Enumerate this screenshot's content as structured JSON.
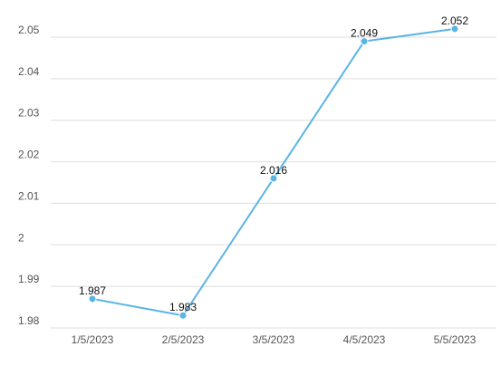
{
  "chart_data": {
    "type": "line",
    "categories": [
      "1/5/2023",
      "2/5/2023",
      "3/5/2023",
      "4/5/2023",
      "5/5/2023"
    ],
    "values": [
      1.987,
      1.983,
      2.016,
      2.049,
      2.052
    ],
    "data_labels": [
      "1.987",
      "1.983",
      "2.016",
      "2.049",
      "2.052"
    ],
    "y_ticks": [
      1.98,
      1.99,
      2.0,
      2.01,
      2.02,
      2.03,
      2.04,
      2.05
    ],
    "y_tick_labels": [
      "1.98",
      "1.99",
      "2",
      "2.01",
      "2.02",
      "2.03",
      "2.04",
      "2.05"
    ],
    "ylim": [
      1.98,
      2.05
    ],
    "title": "",
    "xlabel": "",
    "ylabel": "",
    "grid": true,
    "legend": "none",
    "line_color": "#5ab4e5",
    "grid_color": "#dddddd"
  }
}
